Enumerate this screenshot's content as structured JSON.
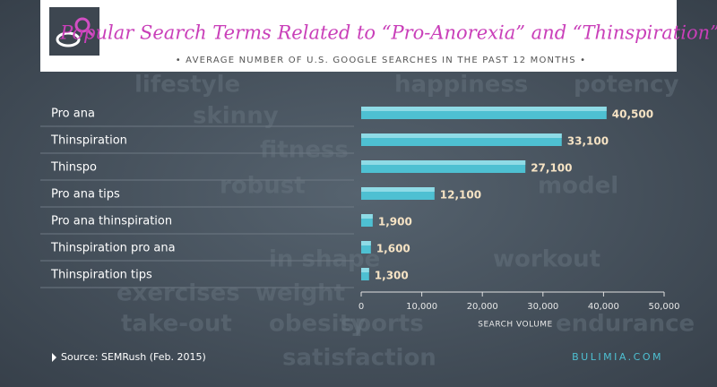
{
  "chart_data": {
    "type": "barh",
    "title": "Popular Search Terms Related to “Pro-Anorexia” and “Thinspiration”",
    "subtitle": "• AVERAGE NUMBER OF U.S. GOOGLE SEARCHES IN THE PAST 12 MONTHS •",
    "categories": [
      "Pro ana",
      "Thinspiration",
      "Thinspo",
      "Pro ana tips",
      "Pro ana thinspiration",
      "Thinspiration pro ana",
      "Thinspiration tips"
    ],
    "values": [
      40500,
      33100,
      27100,
      12100,
      1900,
      1600,
      1300
    ],
    "value_labels": [
      "40,500",
      "33,100",
      "27,100",
      "12,100",
      "1,900",
      "1,600",
      "1,300"
    ],
    "color": "#4ec0d2",
    "xlim": [
      0,
      50000
    ],
    "xticks": [
      0,
      {
        "value": 10000,
        "label": "10,000"
      },
      {
        "value": 20000,
        "label": "20,000"
      },
      {
        "value": 30000,
        "label": "30,000"
      },
      {
        "value": 40000,
        "label": "40,000"
      },
      {
        "value": 50000,
        "label": "50,000"
      }
    ],
    "xlabel": "SEARCH VOLUME",
    "source": "Source: SEMRush (Feb. 2015)",
    "brand": "BULIMIA.COM",
    "background_words": [
      "lifestyle",
      "skinny",
      "fitness",
      "robust",
      "model",
      "exercises",
      "take-out",
      "sports",
      "satisfaction",
      "workout",
      "in shape",
      "endurance",
      "weight",
      "obesity",
      "potency",
      "happiness"
    ]
  }
}
